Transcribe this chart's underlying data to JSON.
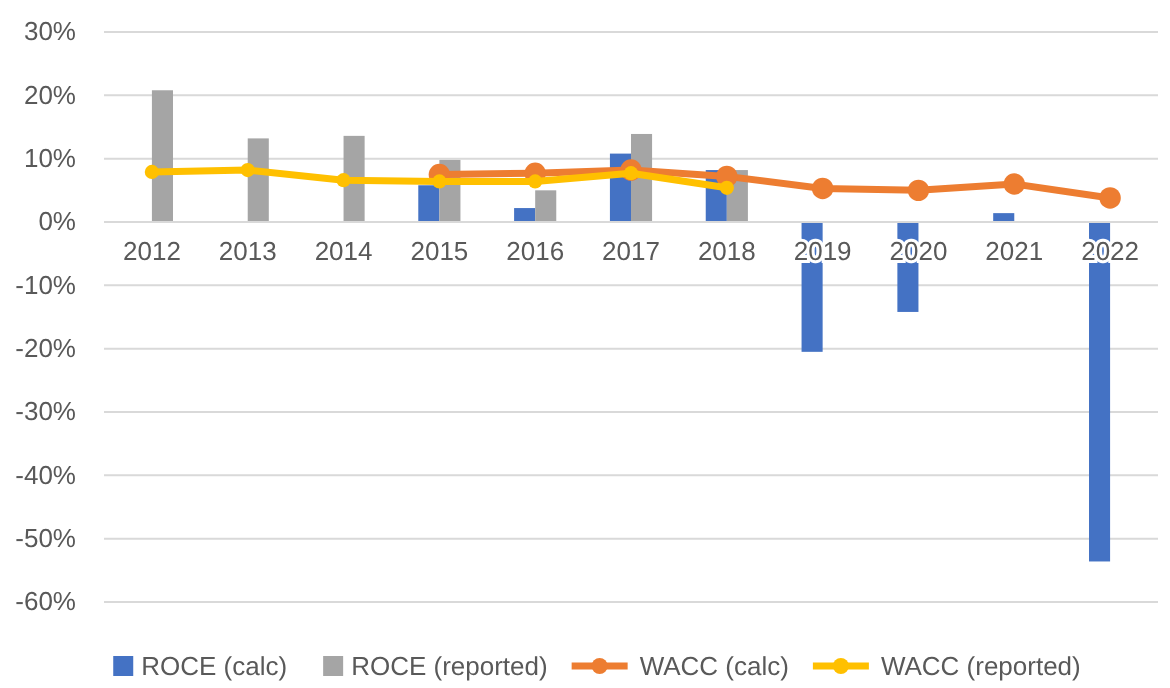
{
  "chart_data": {
    "type": "bar",
    "categories": [
      "2012",
      "2013",
      "2014",
      "2015",
      "2016",
      "2017",
      "2018",
      "2019",
      "2020",
      "2021",
      "2022"
    ],
    "series": [
      {
        "name": "ROCE (calc)",
        "color": "#4472c4",
        "values": [
          null,
          null,
          null,
          5.8,
          2.2,
          10.8,
          8.2,
          -20.5,
          -14.2,
          1.4,
          -53.6
        ]
      },
      {
        "name": "ROCE (reported)",
        "color": "#a5a5a5",
        "values": [
          20.8,
          13.2,
          13.6,
          9.8,
          5.0,
          13.9,
          8.2,
          null,
          null,
          null,
          null
        ]
      },
      {
        "name": "WACC (calc)",
        "type": "line",
        "color": "#ed7d31",
        "values": [
          null,
          null,
          null,
          7.5,
          7.7,
          8.2,
          7.2,
          5.3,
          5.0,
          6.0,
          3.8
        ]
      },
      {
        "name": "WACC (reported)",
        "type": "line",
        "color": "#ffc000",
        "values": [
          7.9,
          8.2,
          6.6,
          6.4,
          6.4,
          7.7,
          5.4,
          null,
          null,
          null,
          null
        ]
      }
    ],
    "ylim": [
      -60,
      30
    ],
    "yticks": [
      {
        "value": -60,
        "label": "-60%"
      },
      {
        "value": -50,
        "label": "-50%"
      },
      {
        "value": -40,
        "label": "-40%"
      },
      {
        "value": -30,
        "label": "-30%"
      },
      {
        "value": -20,
        "label": "-20%"
      },
      {
        "value": -10,
        "label": "-10%"
      },
      {
        "value": 0,
        "label": "0%"
      },
      {
        "value": 10,
        "label": "10%"
      },
      {
        "value": 20,
        "label": "20%"
      },
      {
        "value": 30,
        "label": "30%"
      }
    ],
    "grid": "y",
    "legend": "bottom",
    "marker": "circle",
    "line_style": "solid"
  }
}
